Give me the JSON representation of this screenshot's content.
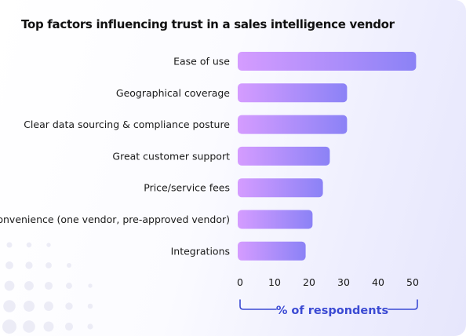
{
  "title": "Top factors influencing trust in a sales intelligence vendor",
  "colors": {
    "bar_start": "#d59cff",
    "bar_end": "#8b82f6",
    "axis_title": "#3b4ad3"
  },
  "chart_data": {
    "type": "bar",
    "orientation": "horizontal",
    "categories": [
      "Ease of use",
      "Geographical coverage",
      "Clear data sourcing & compliance posture",
      "Great customer support",
      "Price/service fees",
      "Convenience (one vendor, pre-approved vendor)",
      "Integrations"
    ],
    "values": [
      51,
      31,
      31,
      26,
      24,
      21,
      19
    ],
    "xlim": [
      0,
      50
    ],
    "xticks": [
      0,
      10,
      20,
      30,
      40,
      50
    ],
    "xlabel": "% of respondents",
    "grid": false
  }
}
